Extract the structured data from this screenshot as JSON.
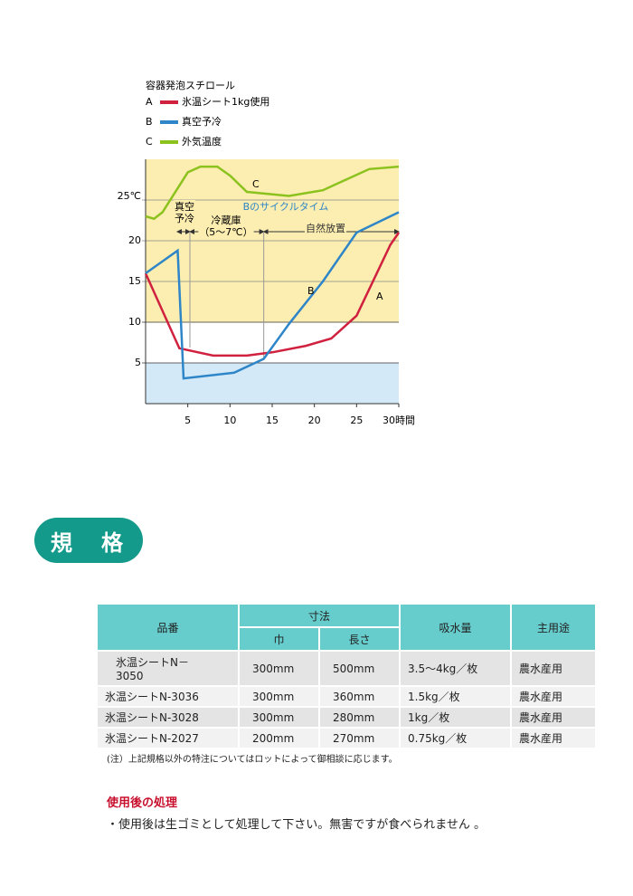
{
  "chart_data": {
    "type": "line",
    "legend_title": "容器発泡スチロール",
    "xlim": [
      0,
      30
    ],
    "ylim": [
      0,
      30
    ],
    "xticks": [
      5,
      10,
      15,
      20,
      25,
      {
        "value": 30,
        "label": "30時間"
      }
    ],
    "yticks": [
      5,
      10,
      15,
      20,
      {
        "value": 25,
        "label": "25℃"
      }
    ],
    "series": [
      {
        "label": "A",
        "name": "氷温シート1kg使用",
        "color": "#d0213f",
        "x": [
          0,
          4,
          8,
          12,
          15,
          19,
          22,
          25,
          29,
          30
        ],
        "values": [
          16,
          6.8,
          5.9,
          5.9,
          6.3,
          7.1,
          8,
          10.8,
          19.5,
          21
        ]
      },
      {
        "label": "B",
        "name": "真空予冷",
        "color": "#2e86c8",
        "x": [
          0,
          3.8,
          4.5,
          10.5,
          14,
          17,
          21,
          25,
          30
        ],
        "values": [
          16,
          18.8,
          3.1,
          3.8,
          5.5,
          9.8,
          15,
          21,
          23.5
        ]
      },
      {
        "label": "C",
        "name": "外気温度",
        "color": "#8cc21e",
        "x": [
          0,
          1,
          2,
          5,
          6.5,
          8.5,
          10,
          12,
          17,
          21,
          26.5,
          30
        ],
        "values": [
          23,
          22.7,
          23.5,
          28.4,
          29.1,
          29.1,
          28,
          26,
          25.5,
          26.2,
          28.8,
          29.1
        ]
      }
    ],
    "cycle_label": "Bのサイクルタイム",
    "phases": [
      {
        "label": [
          "真空",
          "予冷"
        ],
        "start": 3.75,
        "end": 5.25
      },
      {
        "label": [
          "冷蔵庫",
          "（5〜7℃）"
        ],
        "start": 5.25,
        "end": 14
      },
      {
        "label": [
          "自然放置"
        ],
        "start": 14,
        "end": 30
      }
    ]
  },
  "heading": "規　格",
  "table": {
    "header": {
      "part": "品番",
      "size": "寸法",
      "width": "巾",
      "length": "長さ",
      "absorption": "吸水量",
      "use": "主用途"
    },
    "rows": [
      [
        "氷温シートN－3050",
        "300mm",
        "500mm",
        "3.5〜4kg／枚",
        "農水産用"
      ],
      [
        "氷温シートN-3036",
        "300mm",
        "360mm",
        "1.5kg／枚",
        "農水産用"
      ],
      [
        "氷温シートN-3028",
        "300mm",
        "280mm",
        "1kg／枚",
        "農水産用"
      ],
      [
        "氷温シートN-2027",
        "200mm",
        "270mm",
        "0.75kg／枚",
        "農水産用"
      ]
    ]
  },
  "note": "(注）上記規格以外の特注についてはロットによって御相談に応じます。",
  "disposal": {
    "title": "使用後の処理",
    "text": "・使用後は生ゴミとして処理して下さい。無害ですが食べられません 。"
  }
}
